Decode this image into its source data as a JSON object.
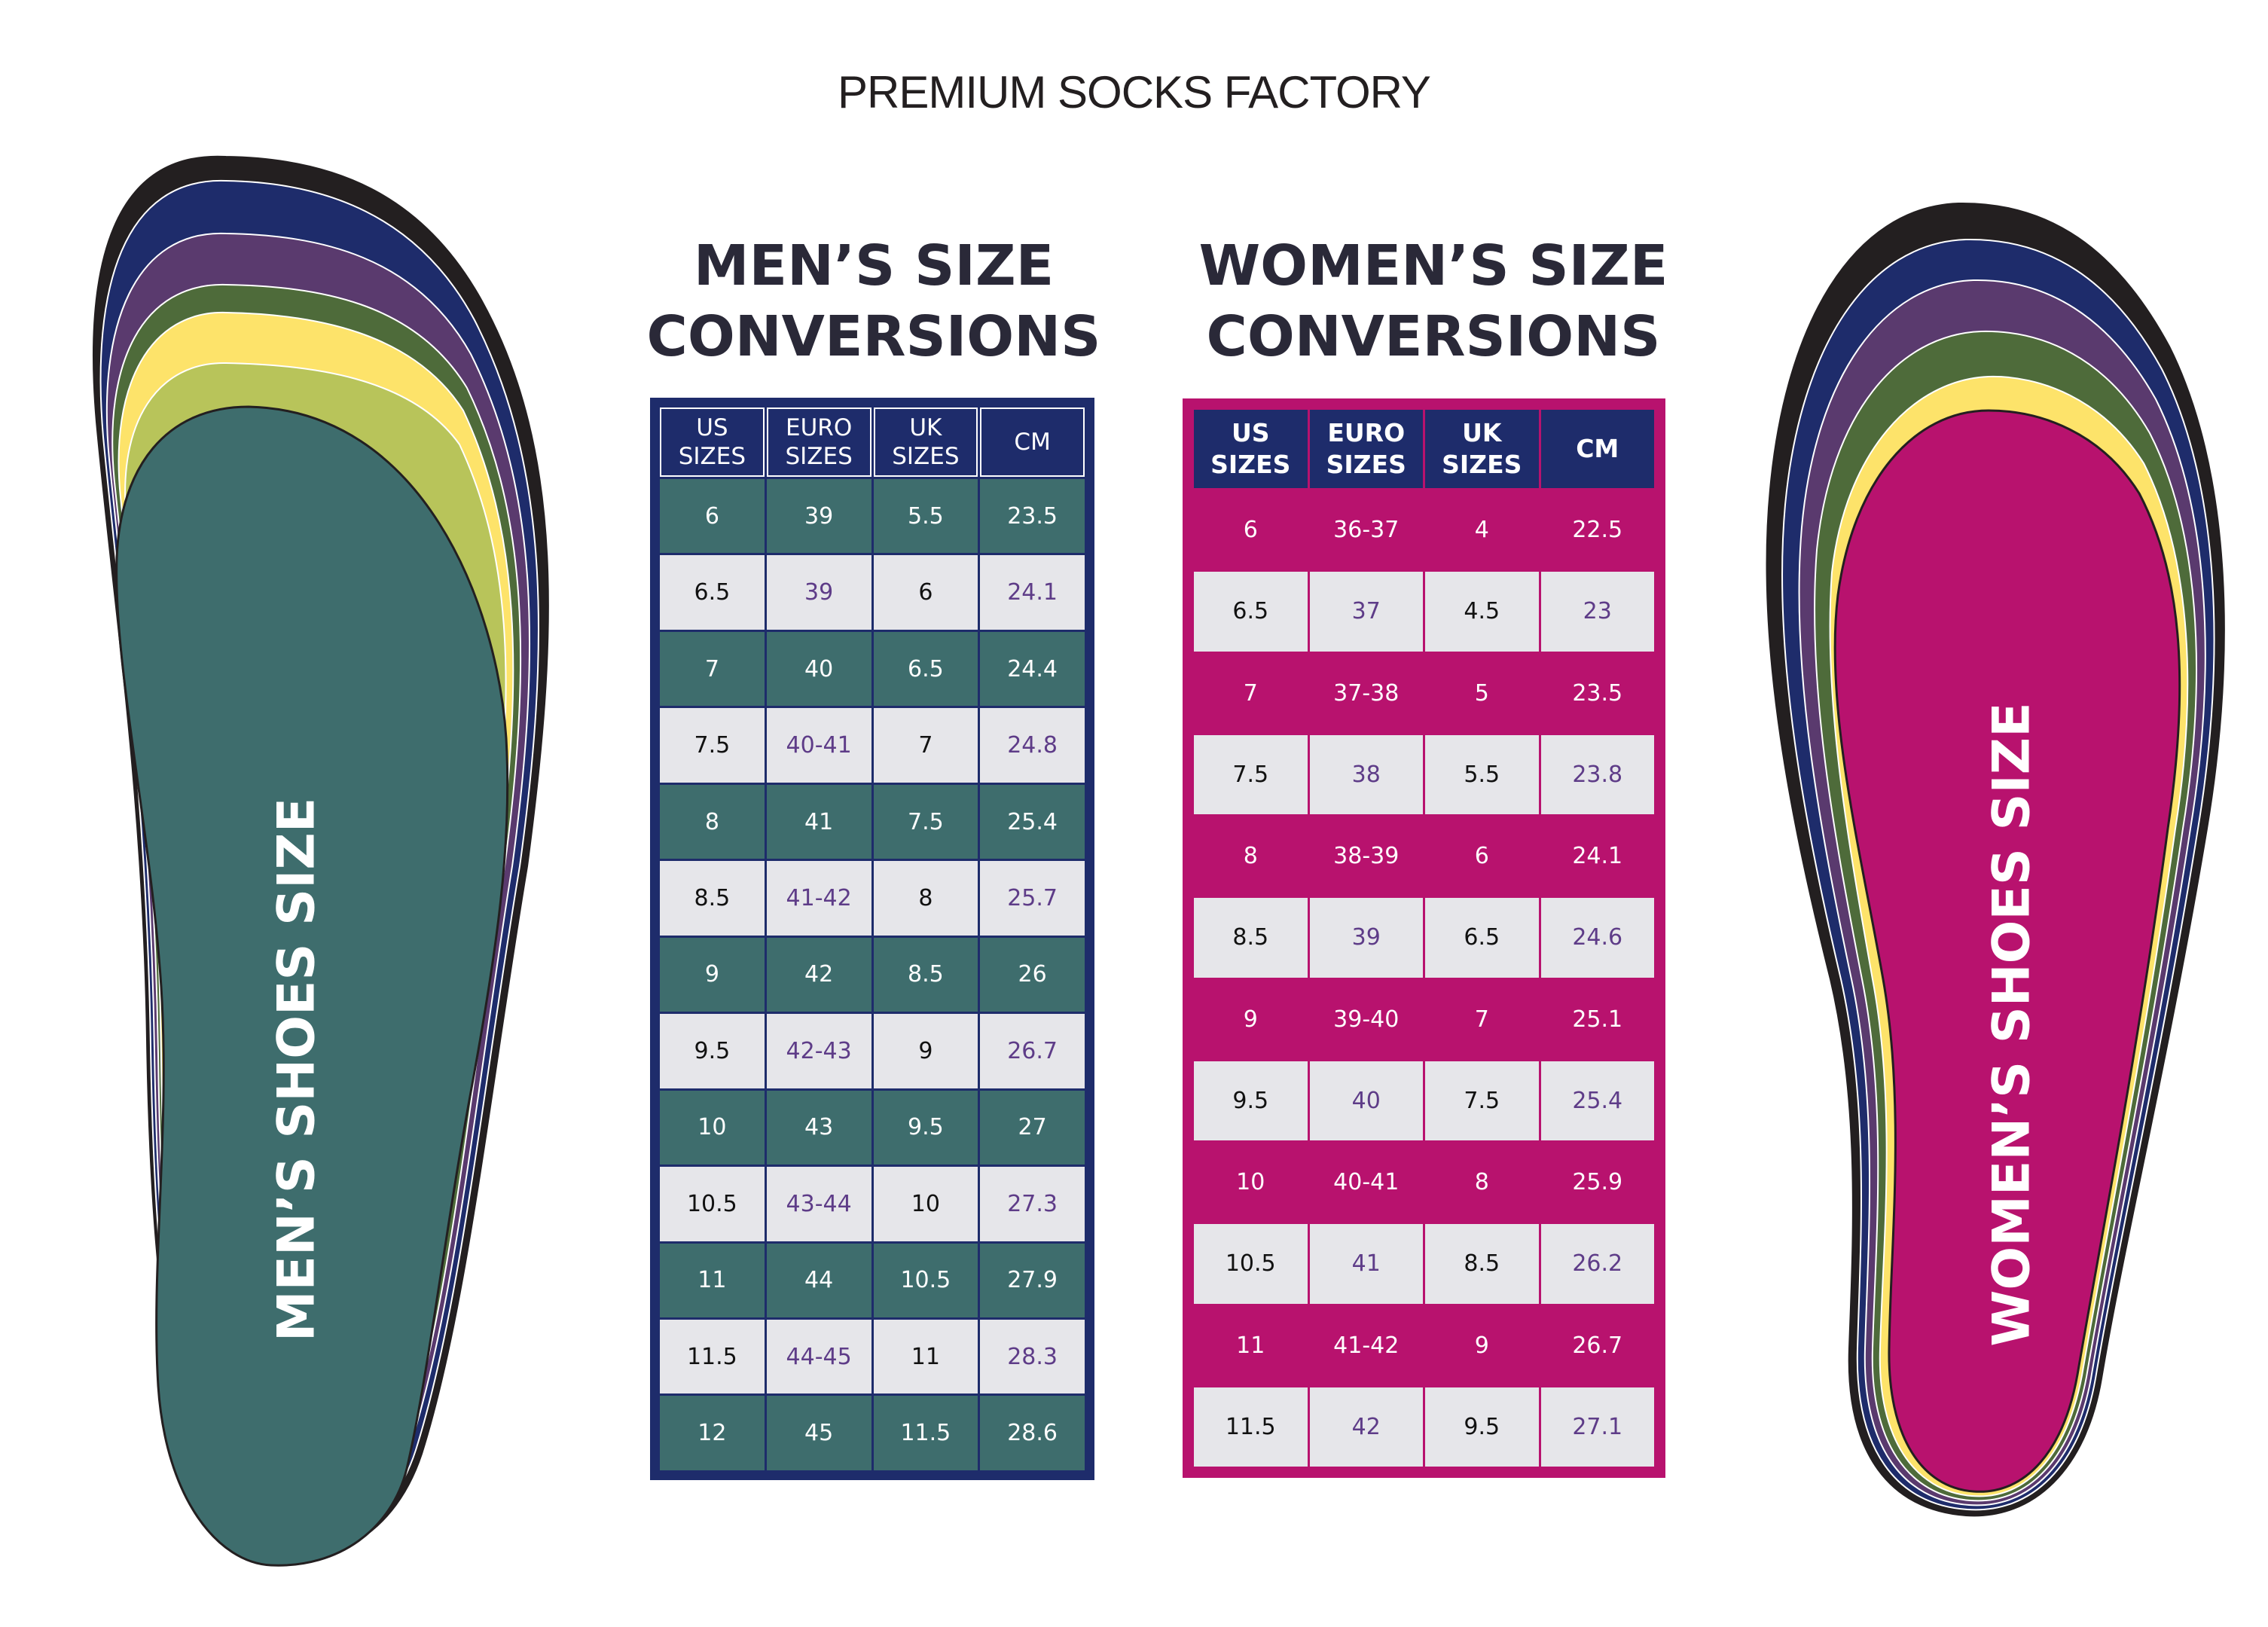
{
  "brand": "PREMIUM SOCKS FACTORY",
  "men": {
    "title_line1": "MEN’S SIZE",
    "title_line2": "CONVERSIONS",
    "foot_label": "MEN’S SHOES SIZE",
    "headers": [
      {
        "l1": "US",
        "l2": "SIZES"
      },
      {
        "l1": "EURO",
        "l2": "SIZES"
      },
      {
        "l1": "UK",
        "l2": "SIZES"
      },
      {
        "l1": "CM",
        "l2": ""
      }
    ],
    "rows": [
      [
        "6",
        "39",
        "5.5",
        "23.5"
      ],
      [
        "6.5",
        "39",
        "6",
        "24.1"
      ],
      [
        "7",
        "40",
        "6.5",
        "24.4"
      ],
      [
        "7.5",
        "40-41",
        "7",
        "24.8"
      ],
      [
        "8",
        "41",
        "7.5",
        "25.4"
      ],
      [
        "8.5",
        "41-42",
        "8",
        "25.7"
      ],
      [
        "9",
        "42",
        "8.5",
        "26"
      ],
      [
        "9.5",
        "42-43",
        "9",
        "26.7"
      ],
      [
        "10",
        "43",
        "9.5",
        "27"
      ],
      [
        "10.5",
        "43-44",
        "10",
        "27.3"
      ],
      [
        "11",
        "44",
        "10.5",
        "27.9"
      ],
      [
        "11.5",
        "44-45",
        "11",
        "28.3"
      ],
      [
        "12",
        "45",
        "11.5",
        "28.6"
      ]
    ]
  },
  "women": {
    "title_line1": "WOMEN’S SIZE",
    "title_line2": "CONVERSIONS",
    "foot_label": "WOMEN’S SHOES SIZE",
    "headers": [
      {
        "l1": "US",
        "l2": "SIZES"
      },
      {
        "l1": "EURO",
        "l2": "SIZES"
      },
      {
        "l1": "UK",
        "l2": "SIZES"
      },
      {
        "l1": "CM",
        "l2": ""
      }
    ],
    "rows": [
      [
        "6",
        "36-37",
        "4",
        "22.5"
      ],
      [
        "6.5",
        "37",
        "4.5",
        "23"
      ],
      [
        "7",
        "37-38",
        "5",
        "23.5"
      ],
      [
        "7.5",
        "38",
        "5.5",
        "23.8"
      ],
      [
        "8",
        "38-39",
        "6",
        "24.1"
      ],
      [
        "8.5",
        "39",
        "6.5",
        "24.6"
      ],
      [
        "9",
        "39-40",
        "7",
        "25.1"
      ],
      [
        "9.5",
        "40",
        "7.5",
        "25.4"
      ],
      [
        "10",
        "40-41",
        "8",
        "25.9"
      ],
      [
        "10.5",
        "41",
        "8.5",
        "26.2"
      ],
      [
        "11",
        "41-42",
        "9",
        "26.7"
      ],
      [
        "11.5",
        "42",
        "9.5",
        "27.1"
      ]
    ]
  },
  "colors": {
    "men_accent": "#3e6d6d",
    "women_accent": "#b8126e",
    "navy": "#1e2c6b",
    "row_light": "#e6e6ea",
    "purple_text": "#5e3c88",
    "insole_layers": [
      "#231f20",
      "#1e2c6b",
      "#5a3a6e",
      "#4e6b3a",
      "#fde36a",
      "#b8c45a"
    ]
  }
}
